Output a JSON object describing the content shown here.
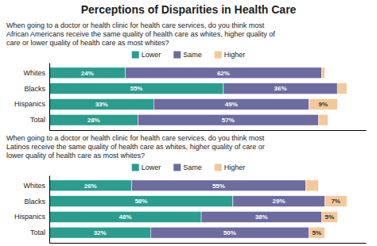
{
  "chart_data": [
    {
      "type": "bar",
      "title": "Perceptions of Disparities in Health Care",
      "annotations": [
        "When going to a doctor or health clinic for health care services, do you think most",
        "African Americans receive the same quality of health care as whites, higher quality of",
        "care or lower quality of health care as most whites?"
      ],
      "categories": [
        "Whites",
        "Blacks",
        "Hispanics",
        "Total"
      ],
      "series": [
        {
          "name": "Lower",
          "color": "#2a9d8f",
          "values": [
            24,
            55,
            33,
            28
          ],
          "value_labels": [
            "24%",
            "55%",
            "33%",
            "28%"
          ]
        },
        {
          "name": "Same",
          "color": "#6c6ca0",
          "values": [
            62,
            36,
            49,
            57
          ],
          "value_labels": [
            "62%",
            "36%",
            "49%",
            "57%"
          ]
        },
        {
          "name": "Higher",
          "color": "#f4c89a",
          "values": [
            1,
            3,
            9,
            3
          ],
          "value_labels": [
            null,
            null,
            "9%",
            null
          ]
        }
      ],
      "xlim": [
        0,
        100
      ],
      "orientation": "horizontal",
      "stacked": true,
      "data_labels": true,
      "tick_labels": "y",
      "grid": false,
      "legend": "top"
    },
    {
      "type": "bar",
      "annotations": [
        "When going to a doctor or health clinic for health care services, do you think most",
        "Latinos receive the same quality of health care as whites, higher quality of care or",
        "lower quality of health care as most whites?"
      ],
      "categories": [
        "Whites",
        "Blacks",
        "Hispanics",
        "Total"
      ],
      "series": [
        {
          "name": "Lower",
          "color": "#2a9d8f",
          "values": [
            26,
            58,
            48,
            32
          ],
          "value_labels": [
            "26%",
            "58%",
            "48%",
            "32%"
          ]
        },
        {
          "name": "Same",
          "color": "#6c6ca0",
          "values": [
            55,
            29,
            38,
            50
          ],
          "value_labels": [
            "55%",
            "29%",
            "38%",
            "50%"
          ]
        },
        {
          "name": "Higher",
          "color": "#f4c89a",
          "values": [
            4,
            7,
            5,
            5
          ],
          "value_labels": [
            null,
            "7%",
            "5%",
            "5%"
          ]
        }
      ],
      "xlim": [
        0,
        100
      ],
      "orientation": "horizontal",
      "stacked": true,
      "data_labels": true,
      "tick_labels": "y",
      "grid": false,
      "legend": "top"
    }
  ]
}
